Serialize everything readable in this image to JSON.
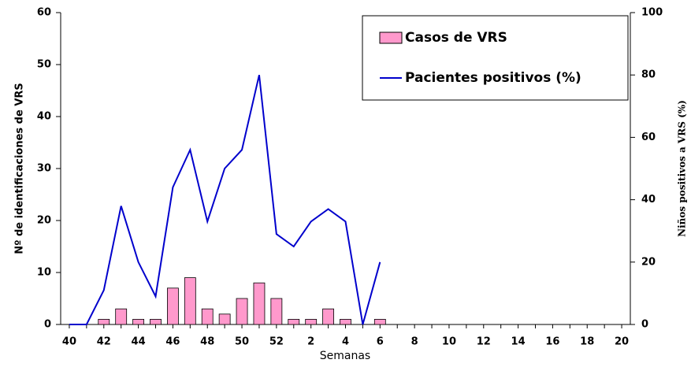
{
  "chart_data": {
    "type": "bar-line",
    "categories": [
      "40",
      null,
      "42",
      null,
      "44",
      null,
      "46",
      null,
      "48",
      null,
      "50",
      null,
      "52",
      null,
      "2",
      null,
      "4",
      null,
      "6",
      null,
      "8",
      null,
      "10",
      null,
      "12",
      null,
      "14",
      null,
      "16",
      null,
      "18",
      null,
      "20"
    ],
    "x_label": "Semanas",
    "y_label": "Nº de identificaciones de VRS",
    "y2_label": "Niños positivos a VRS (%)",
    "ylim": [
      0,
      60
    ],
    "yticks": [
      0,
      10,
      20,
      30,
      40,
      50,
      60
    ],
    "y2lim": [
      0,
      100
    ],
    "y2ticks": [
      0,
      20,
      40,
      60,
      80,
      100
    ],
    "legend": "upper right",
    "series": [
      {
        "name": "Casos de VRS",
        "type": "bar",
        "color": "#ff99cc",
        "values": [
          0,
          0,
          1,
          3,
          1,
          1,
          7,
          9,
          3,
          2,
          5,
          8,
          5,
          1,
          1,
          3,
          1,
          0,
          1,
          null,
          null,
          null,
          null,
          null,
          null,
          null,
          null,
          null,
          null,
          null,
          null,
          null,
          null
        ]
      },
      {
        "name": "Pacientes positivos (%)",
        "type": "line",
        "axis": "y2",
        "color": "#0000cc",
        "values": [
          0,
          0,
          11,
          38,
          20,
          9,
          44,
          56,
          33,
          50,
          56,
          80,
          29,
          25,
          33,
          37,
          33,
          0,
          20,
          null,
          null,
          null,
          null,
          null,
          null,
          null,
          null,
          null,
          null,
          null,
          null,
          null,
          null
        ]
      }
    ]
  }
}
